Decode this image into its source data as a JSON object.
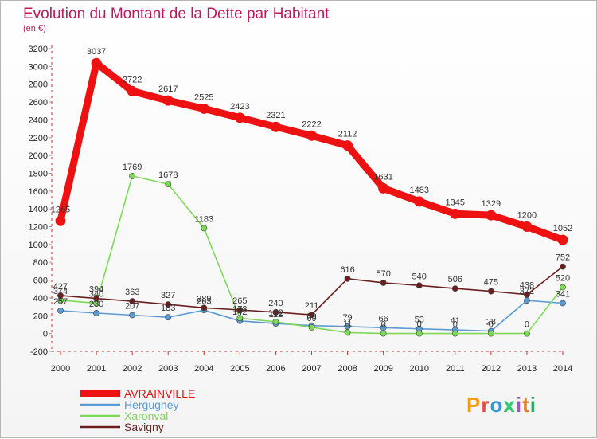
{
  "header": {
    "title": "Evolution du Montant de la Dette par Habitant",
    "subtitle": "(en €)"
  },
  "brand": {
    "letters": [
      "P",
      "r",
      "o",
      "x",
      "i",
      "t",
      "i"
    ]
  },
  "chart_data": {
    "type": "line",
    "x": [
      2000,
      2001,
      2002,
      2003,
      2004,
      2005,
      2006,
      2007,
      2008,
      2009,
      2010,
      2011,
      2012,
      2013,
      2014
    ],
    "ylim": [
      -200,
      3200
    ],
    "yticks": [
      -200,
      0,
      200,
      400,
      600,
      800,
      1000,
      1200,
      1400,
      1600,
      1800,
      2000,
      2200,
      2400,
      2600,
      2800,
      3000,
      3200
    ],
    "grid": false,
    "legend_position": "bottom-left",
    "series": [
      {
        "name": "Hergugney",
        "color": "#5b9bd5",
        "values": [
          257,
          230,
          207,
          183,
          263,
          142,
          112,
          89,
          79,
          66,
          53,
          41,
          28,
          372,
          341
        ],
        "labels": [
          "257",
          "230",
          "207",
          "183",
          "263",
          "142",
          "112",
          "89",
          "79",
          "66",
          "53",
          "41",
          "28",
          "372",
          "341"
        ]
      },
      {
        "name": "Xaronval",
        "color": "#7ed957",
        "values": [
          374,
          340,
          1769,
          1678,
          1183,
          173,
          132,
          69,
          11,
          0,
          0,
          0,
          0,
          0,
          520
        ],
        "labels": [
          "374",
          "340",
          "1769",
          "1678",
          "1183",
          "173",
          "132",
          "69",
          "11",
          "0",
          "0",
          "0",
          "0",
          "0",
          "520"
        ]
      },
      {
        "name": "Savigny",
        "color": "#6b1f1f",
        "values": [
          427,
          394,
          363,
          327,
          289,
          265,
          240,
          211,
          616,
          570,
          540,
          506,
          475,
          438,
          752
        ],
        "labels": [
          "427",
          "394",
          "363",
          "327",
          "289",
          "265",
          "240",
          "211",
          "616",
          "570",
          "540",
          "506",
          "475",
          "438",
          "752"
        ]
      },
      {
        "name": "AVRAINVILLE",
        "color": "#ee1111",
        "values": [
          1265,
          3037,
          2722,
          2617,
          2525,
          2423,
          2321,
          2222,
          2112,
          1631,
          1483,
          1345,
          1329,
          1200,
          1052
        ],
        "labels": [
          "1265",
          "3037",
          "2722",
          "2617",
          "2525",
          "2423",
          "2321",
          "2222",
          "2112",
          "1631",
          "1483",
          "1345",
          "1329",
          "1200",
          "1052"
        ]
      }
    ]
  },
  "legend": {
    "items": [
      {
        "name": "AVRAINVILLE",
        "color": "#ee1111"
      },
      {
        "name": "Hergugney",
        "color": "#5b9bd5"
      },
      {
        "name": "Xaronval",
        "color": "#7ed957"
      },
      {
        "name": "Savigny",
        "color": "#6b1f1f"
      }
    ]
  }
}
